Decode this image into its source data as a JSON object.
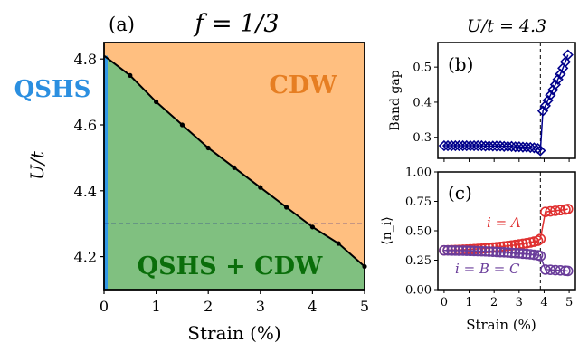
{
  "chart_data": [
    {
      "panel": "(a)",
      "type": "area",
      "title": "f = 1/3",
      "xlabel": "Strain (%)",
      "ylabel": "U/t",
      "xlim": [
        0,
        5
      ],
      "ylim": [
        4.1,
        4.85
      ],
      "xticks": [
        "0",
        "1",
        "2",
        "3",
        "4",
        "5"
      ],
      "yticks": [
        "4.2",
        "4.4",
        "4.6",
        "4.8"
      ],
      "boundary": {
        "x": [
          0,
          0.5,
          1,
          1.5,
          2,
          2.5,
          3,
          3.5,
          4,
          4.5,
          5
        ],
        "y": [
          4.81,
          4.75,
          4.67,
          4.6,
          4.53,
          4.47,
          4.41,
          4.35,
          4.29,
          4.24,
          4.17
        ]
      },
      "hline_y": 4.3,
      "regions": [
        {
          "label": "CDW",
          "color": "#ffbf80"
        },
        {
          "label": "QSHS + CDW",
          "color": "#80c080"
        },
        {
          "label": "QSHS",
          "color": "#3399e6"
        }
      ],
      "label_colors": {
        "cdw": "#e67e22",
        "qshs_cdw": "#0a6e0a",
        "qshs": "#2b8fe0"
      }
    },
    {
      "panel": "(b)",
      "type": "scatter",
      "title": "U/t = 4.3",
      "ylabel": "Band gap",
      "xlim": [
        -0.25,
        5.25
      ],
      "ylim": [
        0.24,
        0.57
      ],
      "yticks": [
        "0.3",
        "0.4",
        "0.5"
      ],
      "vline_x": 3.85,
      "series": [
        {
          "color": "#00008b",
          "x": [
            0,
            0.15,
            0.3,
            0.45,
            0.6,
            0.75,
            0.9,
            1.05,
            1.2,
            1.35,
            1.5,
            1.65,
            1.8,
            1.95,
            2.1,
            2.25,
            2.4,
            2.55,
            2.7,
            2.85,
            3.0,
            3.15,
            3.3,
            3.45,
            3.6,
            3.75,
            3.85,
            3.95,
            4.05,
            4.15,
            4.25,
            4.35,
            4.45,
            4.55,
            4.65,
            4.75,
            4.85,
            4.95
          ],
          "y": [
            0.276,
            0.276,
            0.276,
            0.276,
            0.276,
            0.276,
            0.276,
            0.276,
            0.276,
            0.276,
            0.276,
            0.275,
            0.275,
            0.275,
            0.275,
            0.275,
            0.274,
            0.274,
            0.274,
            0.273,
            0.273,
            0.272,
            0.272,
            0.271,
            0.27,
            0.268,
            0.262,
            0.375,
            0.39,
            0.405,
            0.42,
            0.435,
            0.45,
            0.465,
            0.48,
            0.497,
            0.515,
            0.535
          ]
        }
      ]
    },
    {
      "panel": "(c)",
      "type": "scatter",
      "xlabel": "Strain (%)",
      "ylabel": "⟨n_i⟩",
      "xlim": [
        -0.25,
        5.25
      ],
      "ylim": [
        0,
        1
      ],
      "xticks": [
        "0",
        "1",
        "2",
        "3",
        "4",
        "5"
      ],
      "yticks": [
        "0.00",
        "0.25",
        "0.50",
        "0.75",
        "1.00"
      ],
      "vline_x": 3.85,
      "series": [
        {
          "name": "i = A",
          "color": "#e03030",
          "x": [
            0,
            0.15,
            0.3,
            0.45,
            0.6,
            0.75,
            0.9,
            1.05,
            1.2,
            1.35,
            1.5,
            1.65,
            1.8,
            1.95,
            2.1,
            2.25,
            2.4,
            2.55,
            2.7,
            2.85,
            3.0,
            3.15,
            3.3,
            3.45,
            3.6,
            3.75,
            3.85,
            4.05,
            4.25,
            4.45,
            4.65,
            4.85,
            4.95
          ],
          "y": [
            0.333,
            0.334,
            0.335,
            0.336,
            0.337,
            0.339,
            0.34,
            0.342,
            0.344,
            0.346,
            0.348,
            0.351,
            0.354,
            0.357,
            0.36,
            0.363,
            0.367,
            0.371,
            0.375,
            0.379,
            0.384,
            0.389,
            0.394,
            0.4,
            0.407,
            0.415,
            0.43,
            0.66,
            0.665,
            0.67,
            0.675,
            0.68,
            0.685
          ]
        },
        {
          "name": "i = B = C",
          "color": "#6a3d9a",
          "x": [
            0,
            0.15,
            0.3,
            0.45,
            0.6,
            0.75,
            0.9,
            1.05,
            1.2,
            1.35,
            1.5,
            1.65,
            1.8,
            1.95,
            2.1,
            2.25,
            2.4,
            2.55,
            2.7,
            2.85,
            3.0,
            3.15,
            3.3,
            3.45,
            3.6,
            3.75,
            3.85,
            4.05,
            4.25,
            4.45,
            4.65,
            4.85,
            4.95
          ],
          "y": [
            0.333,
            0.333,
            0.332,
            0.332,
            0.331,
            0.331,
            0.33,
            0.329,
            0.328,
            0.327,
            0.326,
            0.325,
            0.323,
            0.322,
            0.32,
            0.318,
            0.317,
            0.315,
            0.312,
            0.31,
            0.308,
            0.305,
            0.303,
            0.3,
            0.296,
            0.292,
            0.285,
            0.17,
            0.168,
            0.165,
            0.163,
            0.16,
            0.158
          ]
        }
      ]
    }
  ]
}
